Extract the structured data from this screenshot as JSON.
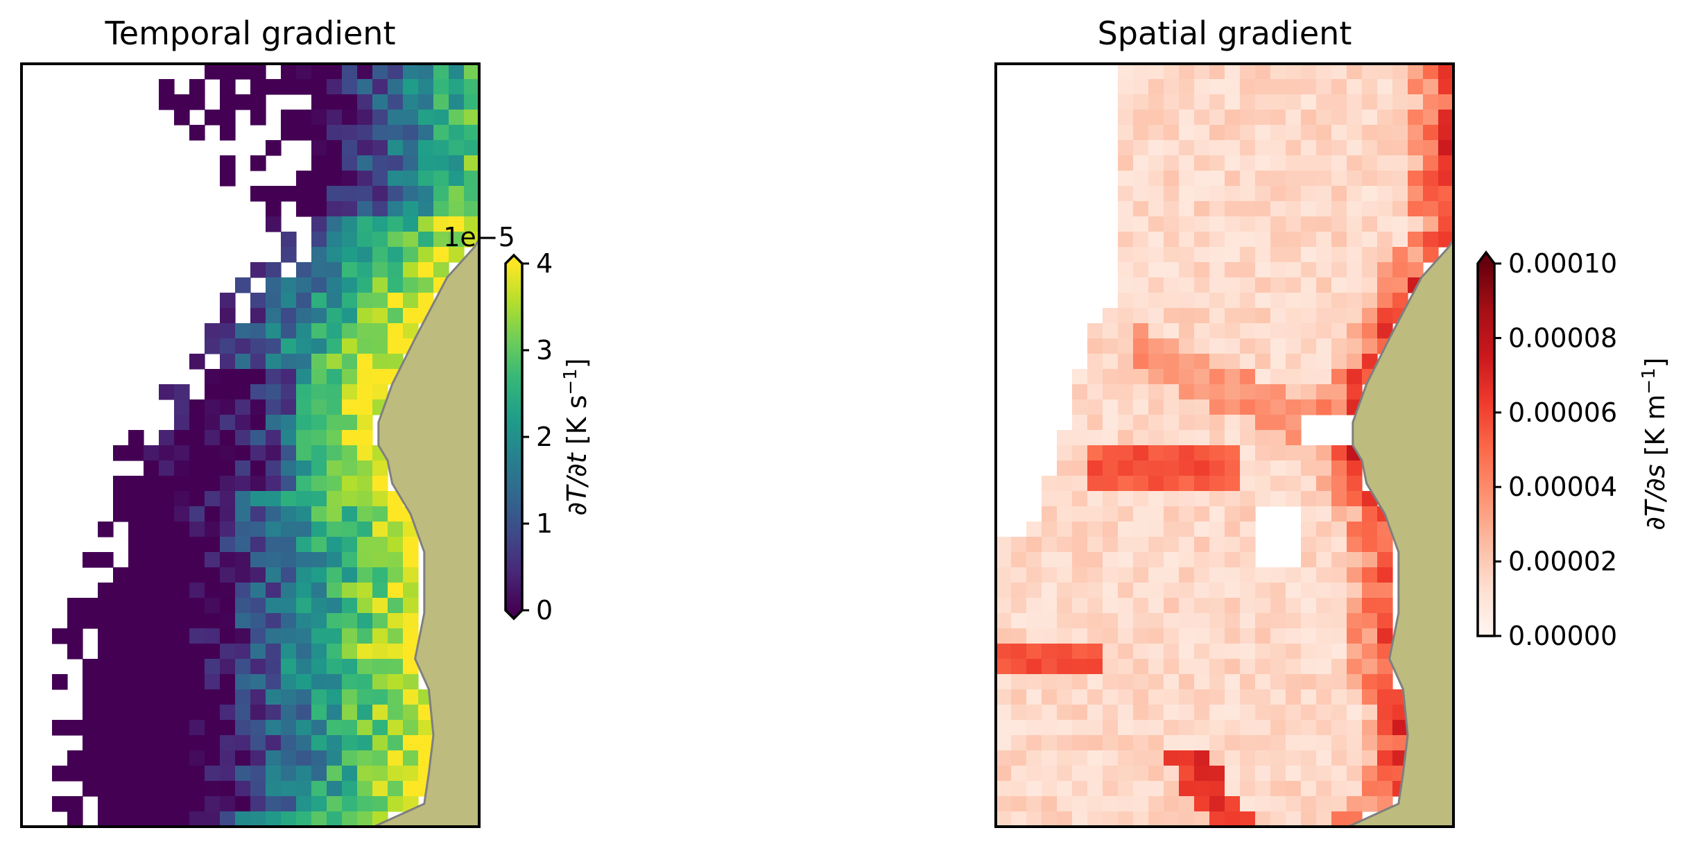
{
  "figure": {
    "panels": [
      {
        "title": "Temporal gradient"
      },
      {
        "title": "Spatial gradient"
      }
    ]
  },
  "colors": {
    "land": "#bdbb7e",
    "coast_line": "#7f7f7f",
    "frame": "#000000",
    "temporal_cmap": "viridis",
    "spatial_cmap": "Reds"
  },
  "chart_data": [
    {
      "type": "heatmap",
      "title": "Temporal gradient",
      "xlabel": "",
      "ylabel": "",
      "colormap": "viridis",
      "missing": "white (no data)",
      "grid": false,
      "colorbar": {
        "label": "∂T/∂t [K s⁻¹]",
        "label_parts": {
          "var": "∂T/∂t",
          "unit": " [K s",
          "exp": "−1",
          "close": "]"
        },
        "offset_text": "1e−5",
        "range": [
          0,
          4
        ],
        "ticks": [
          0,
          1,
          2,
          3,
          4
        ],
        "tick_labels": [
          "0",
          "1",
          "2",
          "3",
          "4"
        ],
        "extend": "both"
      }
    },
    {
      "type": "heatmap",
      "title": "Spatial gradient",
      "xlabel": "",
      "ylabel": "",
      "colormap": "Reds",
      "missing": "white (no data)",
      "grid": false,
      "colorbar": {
        "label": "∂T/∂s [K m⁻¹]",
        "label_parts": {
          "var": "∂T/∂s",
          "unit": " [K m",
          "exp": "−1",
          "close": "]"
        },
        "range": [
          0,
          0.0001
        ],
        "ticks": [
          0,
          2e-05,
          4e-05,
          6e-05,
          8e-05,
          0.0001
        ],
        "tick_labels": [
          "0.00000",
          "0.00002",
          "0.00004",
          "0.00006",
          "0.00008",
          "0.00010"
        ],
        "extend": "max"
      }
    }
  ]
}
